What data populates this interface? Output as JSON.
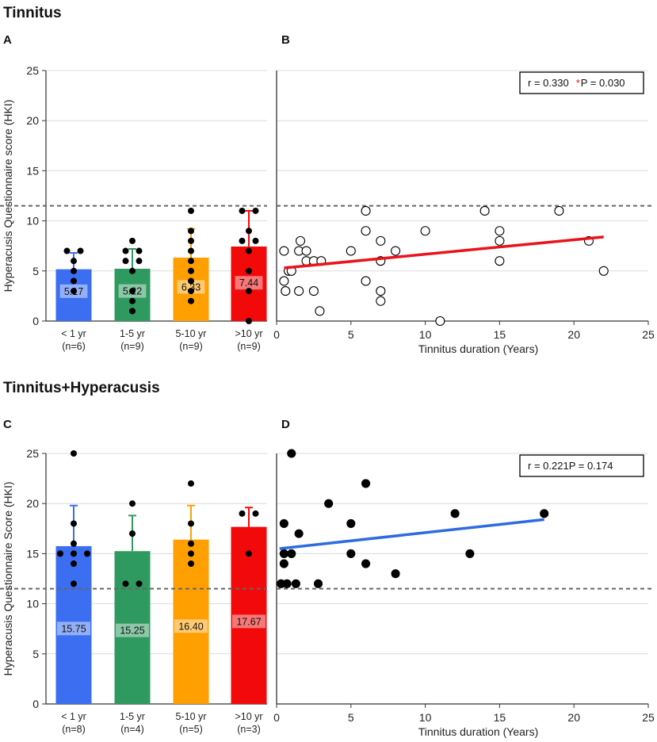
{
  "sections": [
    {
      "title": "Tinnitus"
    },
    {
      "title": "Tinnitus+Hyperacusis"
    }
  ],
  "reference_line_value": 11.5,
  "chart_data": [
    {
      "panel": "A",
      "type": "bar",
      "ylabel": "Hyperacusis Questionnaire score (HKI)",
      "ylim": [
        0,
        25
      ],
      "yticks": [
        0,
        5,
        10,
        15,
        20,
        25
      ],
      "categories": [
        "< 1 yr",
        "1-5 yr",
        "5-10 yr",
        ">10 yr"
      ],
      "category_n": [
        "(n=6)",
        "(n=9)",
        "(n=9)",
        "(n=9)"
      ],
      "colors": [
        "#3b6ef0",
        "#2f9a5f",
        "#ff9f00",
        "#f20a0a"
      ],
      "values": [
        5.17,
        5.22,
        6.33,
        7.44
      ],
      "value_labels": [
        "5.17",
        "5.22",
        "6.33",
        "7.44"
      ],
      "error_upper": [
        6.8,
        7.2,
        9.2,
        11.0
      ],
      "points": [
        [
          7,
          7,
          6,
          5,
          4,
          3
        ],
        [
          8,
          7,
          7,
          6,
          6,
          5,
          3,
          2,
          1
        ],
        [
          11,
          9,
          8,
          7,
          6,
          5,
          4,
          3,
          2
        ],
        [
          11,
          11,
          9,
          8,
          8,
          7,
          5,
          3,
          0
        ]
      ],
      "reference_line": 11.5
    },
    {
      "panel": "B",
      "type": "scatter",
      "xlabel": "Tinnitus duration (Years)",
      "xlim": [
        0,
        25
      ],
      "xticks": [
        0,
        5,
        10,
        15,
        20,
        25
      ],
      "ylim": [
        0,
        25
      ],
      "marker": "open-circle",
      "fit_color": "#e8141b",
      "annotation": {
        "r_text": "r = 0.330",
        "star": "*",
        "p_text": "P = 0.030"
      },
      "points": [
        [
          0.5,
          7
        ],
        [
          0.5,
          4
        ],
        [
          0.6,
          3
        ],
        [
          0.8,
          5
        ],
        [
          1,
          5
        ],
        [
          1.5,
          7
        ],
        [
          1.6,
          8
        ],
        [
          1.5,
          3
        ],
        [
          2,
          7
        ],
        [
          2,
          6
        ],
        [
          2.5,
          3
        ],
        [
          2.5,
          6
        ],
        [
          3,
          6
        ],
        [
          2.9,
          1
        ],
        [
          5,
          7
        ],
        [
          6,
          11
        ],
        [
          6,
          9
        ],
        [
          6,
          4
        ],
        [
          7,
          8
        ],
        [
          7,
          6
        ],
        [
          7,
          3
        ],
        [
          7,
          2
        ],
        [
          8,
          7
        ],
        [
          10,
          9
        ],
        [
          11,
          0
        ],
        [
          14,
          11
        ],
        [
          15,
          9
        ],
        [
          15,
          8
        ],
        [
          15,
          6
        ],
        [
          19,
          11
        ],
        [
          21,
          8
        ],
        [
          22,
          5
        ]
      ],
      "fit": {
        "x": [
          0.5,
          22
        ],
        "y": [
          5.3,
          8.4
        ]
      },
      "reference_line": 11.5
    },
    {
      "panel": "C",
      "type": "bar",
      "ylabel": "Hyperacusis Questionnaire Score (HKI)",
      "ylim": [
        0,
        25
      ],
      "yticks": [
        0,
        5,
        10,
        15,
        20,
        25
      ],
      "categories": [
        "< 1 yr",
        "1-5 yr",
        "5-10 yr",
        ">10 yr"
      ],
      "category_n": [
        "(n=8)",
        "(n=4)",
        "(n=5)",
        "(n=3)"
      ],
      "colors": [
        "#3b6ef0",
        "#2f9a5f",
        "#ff9f00",
        "#f20a0a"
      ],
      "values": [
        15.75,
        15.25,
        16.4,
        17.67
      ],
      "value_labels": [
        "15.75",
        "15.25",
        "16.40",
        "17.67"
      ],
      "error_upper": [
        19.8,
        18.8,
        19.8,
        19.6
      ],
      "points": [
        [
          25,
          18,
          16,
          15,
          15,
          15,
          14,
          12
        ],
        [
          20,
          17,
          12,
          12
        ],
        [
          22,
          18,
          16,
          15,
          14
        ],
        [
          19,
          19,
          15
        ]
      ],
      "reference_line": 11.5
    },
    {
      "panel": "D",
      "type": "scatter",
      "xlabel": "Tinnitus duration (Years)",
      "xlim": [
        0,
        25
      ],
      "xticks": [
        0,
        5,
        10,
        15,
        20,
        25
      ],
      "ylim": [
        0,
        25
      ],
      "marker": "filled-circle",
      "fit_color": "#2f6bde",
      "annotation": {
        "r_text": "r = 0.221",
        "star": "",
        "p_text": "P = 0.174"
      },
      "points": [
        [
          0.3,
          12
        ],
        [
          0.5,
          18
        ],
        [
          0.5,
          15
        ],
        [
          0.5,
          14
        ],
        [
          0.7,
          12
        ],
        [
          1,
          25
        ],
        [
          1,
          15
        ],
        [
          1.3,
          12
        ],
        [
          1.5,
          17
        ],
        [
          2.8,
          12
        ],
        [
          3.5,
          20
        ],
        [
          5,
          18
        ],
        [
          5,
          15
        ],
        [
          6,
          22
        ],
        [
          6,
          14
        ],
        [
          8,
          13
        ],
        [
          12,
          19
        ],
        [
          13,
          15
        ],
        [
          18,
          19
        ]
      ],
      "fit": {
        "x": [
          0.2,
          18
        ],
        "y": [
          15.5,
          18.4
        ]
      },
      "reference_line": 11.5
    }
  ]
}
